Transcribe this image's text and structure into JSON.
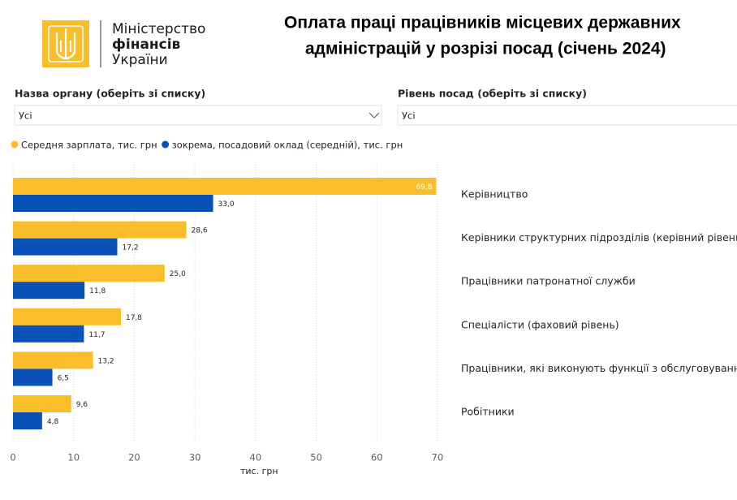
{
  "header": {
    "logo_lines": [
      "Міністерство",
      "фінансів",
      "України"
    ],
    "title_lines": [
      "Оплата праці працівників місцевих державних",
      "адміністрацій у розрізі посад (січень 2024)"
    ]
  },
  "filters": [
    {
      "label": "Назва органу (оберіть зі списку)",
      "value": "Усі"
    },
    {
      "label": "Рівень посад (оберіть зі списку)",
      "value": "Усі"
    }
  ],
  "chart_data": {
    "type": "hbar",
    "categories": [
      "Керівництво",
      "Керівники структурних підрозділів (керівний рівень)",
      "Працівники патронатної служби",
      "Спеціалісти (фаховий рівень)",
      "Працівники, які виконують функції з обслуговування",
      "Робітники"
    ],
    "series": [
      {
        "name": "Середня зарплата, тис. грн",
        "color": "#F9BE2A",
        "values": [
          69.8,
          28.6,
          25.0,
          17.8,
          13.2,
          9.6
        ],
        "value_labels": [
          "69,8",
          "28,6",
          "25,0",
          "17,8",
          "13,2",
          "9,6"
        ]
      },
      {
        "name": "зокрема, посадовий оклад (середній), тис. грн",
        "color": "#0B52B8",
        "values": [
          33.0,
          17.2,
          11.8,
          11.7,
          6.5,
          4.8
        ],
        "value_labels": [
          "33,0",
          "17,2",
          "11,8",
          "11,7",
          "6,5",
          "4,8"
        ]
      }
    ],
    "xlabel": "тис. грн",
    "xlim": [
      0,
      70
    ],
    "xticks": [
      0,
      10,
      20,
      30,
      40,
      50,
      60,
      70
    ],
    "grid": true
  }
}
